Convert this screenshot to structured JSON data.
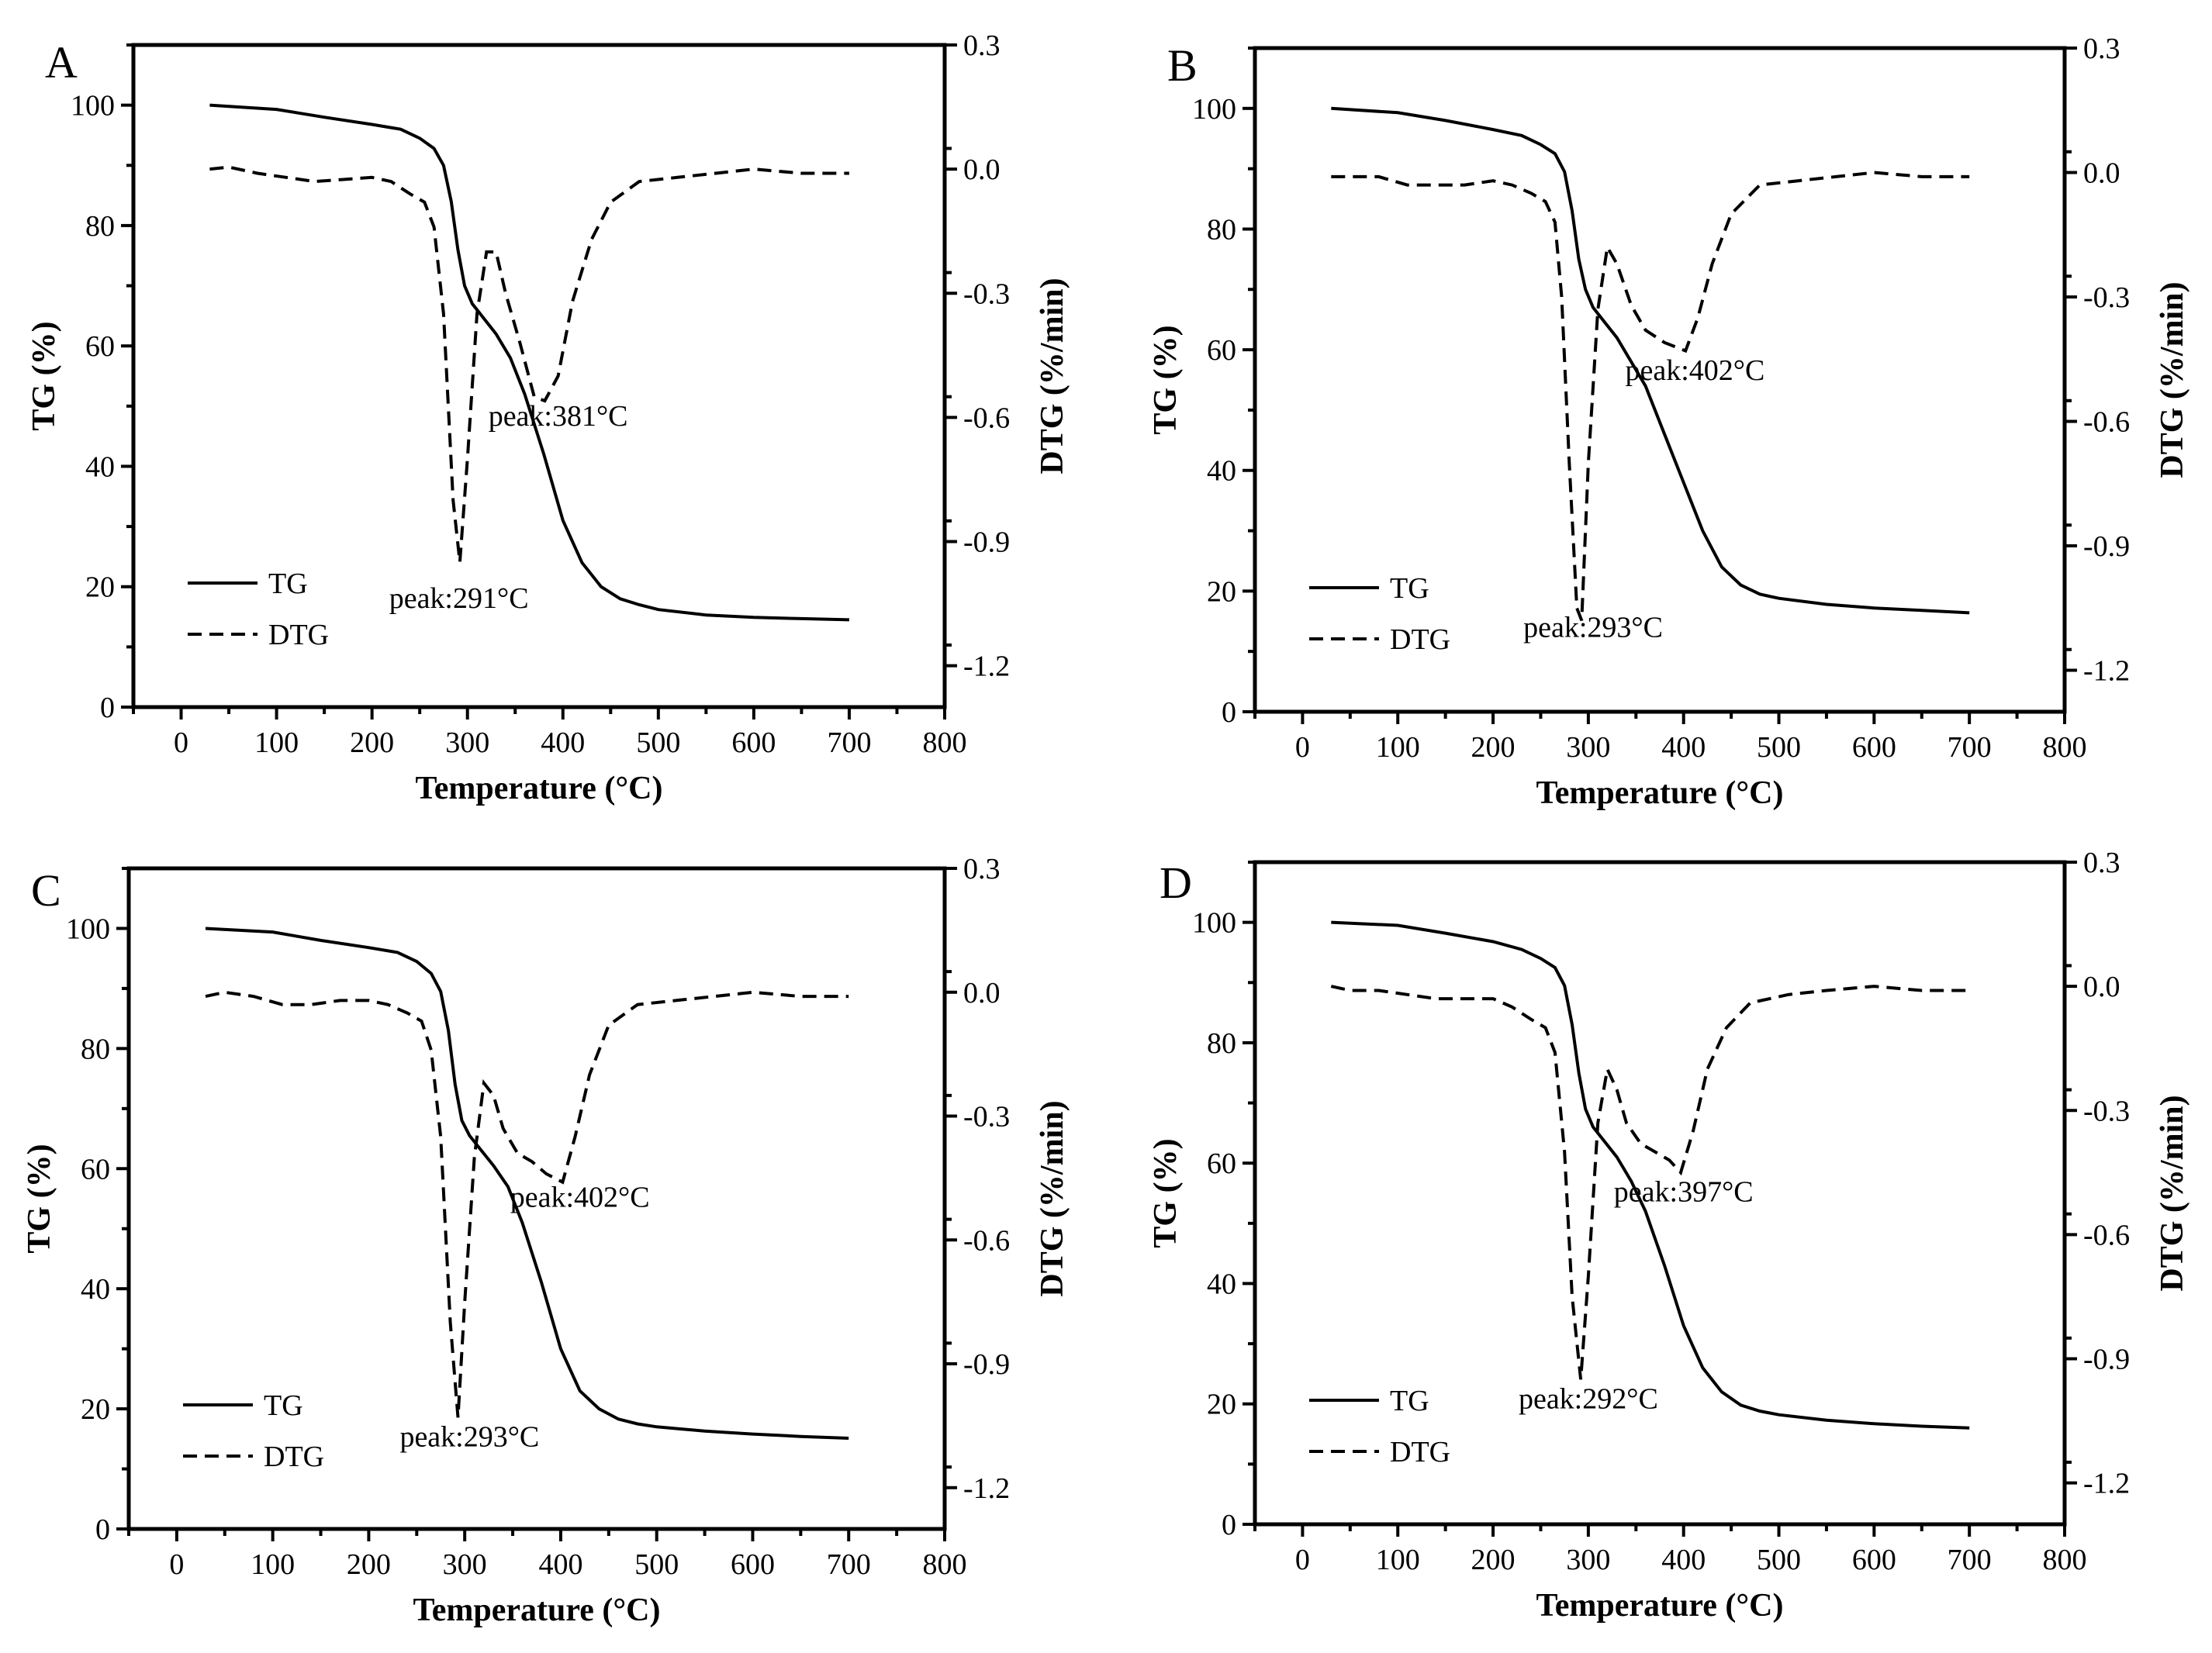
{
  "chart_data": [
    {
      "type": "line",
      "panel": "A",
      "xlabel": "Temperature (°C)",
      "ylabel": "TG (%)",
      "y2label": "DTG (%/min)",
      "xlim": [
        -50,
        800
      ],
      "ylim": [
        0,
        110
      ],
      "y2lim": [
        -1.3,
        0.3
      ],
      "xticks": [
        "0",
        "100",
        "200",
        "300",
        "400",
        "500",
        "600",
        "700",
        "800"
      ],
      "yticks": [
        "0",
        "20",
        "40",
        "60",
        "80",
        "100"
      ],
      "y2ticks": [
        "0.3",
        "0.0",
        "-0.3",
        "-0.6",
        "-0.9",
        "-1.2"
      ],
      "legend": [
        "TG",
        "DTG"
      ],
      "legend_position": "lower-left",
      "series": [
        {
          "name": "TG",
          "x": [
            30,
            100,
            150,
            200,
            230,
            250,
            265,
            275,
            283,
            290,
            297,
            305,
            315,
            330,
            345,
            360,
            380,
            400,
            420,
            440,
            460,
            480,
            500,
            550,
            600,
            650,
            700
          ],
          "values": [
            100,
            99.3,
            98,
            96.8,
            96,
            94.5,
            92.8,
            90,
            84,
            76,
            70,
            67,
            65,
            62,
            58,
            52,
            42,
            31,
            24,
            20,
            18,
            17,
            16.2,
            15.3,
            14.9,
            14.7,
            14.5
          ]
        },
        {
          "name": "DTG",
          "x": [
            30,
            50,
            80,
            110,
            140,
            170,
            200,
            220,
            240,
            255,
            265,
            275,
            285,
            292,
            300,
            310,
            320,
            330,
            340,
            355,
            370,
            381,
            395,
            410,
            430,
            450,
            480,
            520,
            560,
            600,
            650,
            700
          ],
          "values": [
            0,
            0.005,
            -0.01,
            -0.02,
            -0.03,
            -0.025,
            -0.02,
            -0.03,
            -0.06,
            -0.08,
            -0.14,
            -0.35,
            -0.8,
            -0.95,
            -0.7,
            -0.35,
            -0.2,
            -0.2,
            -0.3,
            -0.42,
            -0.55,
            -0.56,
            -0.5,
            -0.32,
            -0.17,
            -0.08,
            -0.03,
            -0.02,
            -0.01,
            0.0,
            -0.01,
            -0.01
          ]
        }
      ],
      "annotations": [
        {
          "text": "peak:291°C",
          "x": 291,
          "y2": -1.06
        },
        {
          "text": "peak:381°C",
          "x": 395,
          "y2": -0.62
        }
      ]
    },
    {
      "type": "line",
      "panel": "B",
      "xlabel": "Temperature (°C)",
      "ylabel": "TG (%)",
      "y2label": "DTG (%/min)",
      "xlim": [
        -50,
        800
      ],
      "ylim": [
        0,
        110
      ],
      "y2lim": [
        -1.3,
        0.3
      ],
      "xticks": [
        "0",
        "100",
        "200",
        "300",
        "400",
        "500",
        "600",
        "700",
        "800"
      ],
      "yticks": [
        "0",
        "20",
        "40",
        "60",
        "80",
        "100"
      ],
      "y2ticks": [
        "0.3",
        "0.0",
        "-0.3",
        "-0.6",
        "-0.9",
        "-1.2"
      ],
      "legend": [
        "TG",
        "DTG"
      ],
      "legend_position": "lower-left",
      "series": [
        {
          "name": "TG",
          "x": [
            30,
            100,
            150,
            200,
            230,
            250,
            265,
            275,
            283,
            290,
            297,
            305,
            315,
            330,
            345,
            360,
            380,
            400,
            420,
            440,
            460,
            480,
            500,
            550,
            600,
            650,
            700
          ],
          "values": [
            100,
            99.3,
            98,
            96.5,
            95.5,
            94,
            92.5,
            89.5,
            83,
            75,
            70,
            67,
            65,
            62,
            58,
            54,
            46,
            38,
            30,
            24,
            21,
            19.5,
            18.8,
            17.8,
            17.2,
            16.8,
            16.4
          ]
        },
        {
          "name": "DTG",
          "x": [
            30,
            50,
            80,
            110,
            140,
            170,
            200,
            220,
            240,
            255,
            265,
            272,
            280,
            288,
            293,
            300,
            310,
            320,
            330,
            345,
            360,
            380,
            402,
            415,
            430,
            450,
            480,
            520,
            560,
            600,
            650,
            700
          ],
          "values": [
            -0.01,
            -0.01,
            -0.01,
            -0.03,
            -0.03,
            -0.03,
            -0.02,
            -0.03,
            -0.05,
            -0.07,
            -0.12,
            -0.3,
            -0.7,
            -1.05,
            -1.08,
            -0.7,
            -0.33,
            -0.18,
            -0.22,
            -0.32,
            -0.38,
            -0.41,
            -0.43,
            -0.35,
            -0.22,
            -0.1,
            -0.03,
            -0.02,
            -0.01,
            0.0,
            -0.01,
            -0.01
          ]
        }
      ],
      "annotations": [
        {
          "text": "peak:293°C",
          "x": 305,
          "y2": -1.12
        },
        {
          "text": "peak:402°C",
          "x": 412,
          "y2": -0.5
        }
      ]
    },
    {
      "type": "line",
      "panel": "C",
      "xlabel": "Temperature (°C)",
      "ylabel": "TG (%)",
      "y2label": "DTG (%/min)",
      "xlim": [
        -50,
        800
      ],
      "ylim": [
        0,
        110
      ],
      "y2lim": [
        -1.3,
        0.3
      ],
      "xticks": [
        "0",
        "100",
        "200",
        "300",
        "400",
        "500",
        "600",
        "700",
        "800"
      ],
      "yticks": [
        "0",
        "20",
        "40",
        "60",
        "80",
        "100"
      ],
      "y2ticks": [
        "0.3",
        "0.0",
        "-0.3",
        "-0.6",
        "-0.9",
        "-1.2"
      ],
      "legend": [
        "TG",
        "DTG"
      ],
      "legend_position": "lower-left",
      "series": [
        {
          "name": "TG",
          "x": [
            30,
            100,
            150,
            200,
            230,
            250,
            265,
            275,
            283,
            290,
            297,
            305,
            315,
            330,
            345,
            360,
            380,
            400,
            420,
            440,
            460,
            480,
            500,
            550,
            600,
            650,
            700
          ],
          "values": [
            100,
            99.4,
            98,
            96.8,
            96,
            94.5,
            92.5,
            89.5,
            83,
            74,
            68,
            65.5,
            63.5,
            60.5,
            57,
            51,
            41,
            30,
            23,
            20,
            18.3,
            17.5,
            17,
            16.3,
            15.8,
            15.4,
            15.1
          ]
        },
        {
          "name": "DTG",
          "x": [
            30,
            50,
            80,
            110,
            140,
            170,
            200,
            220,
            240,
            255,
            265,
            275,
            285,
            293,
            300,
            310,
            320,
            330,
            340,
            355,
            370,
            385,
            402,
            415,
            430,
            450,
            480,
            520,
            560,
            600,
            650,
            700
          ],
          "values": [
            -0.01,
            0.0,
            -0.01,
            -0.03,
            -0.03,
            -0.02,
            -0.02,
            -0.03,
            -0.05,
            -0.07,
            -0.14,
            -0.35,
            -0.8,
            -1.03,
            -0.75,
            -0.4,
            -0.22,
            -0.25,
            -0.33,
            -0.39,
            -0.41,
            -0.44,
            -0.46,
            -0.35,
            -0.2,
            -0.08,
            -0.03,
            -0.02,
            -0.01,
            0.0,
            -0.01,
            -0.01
          ]
        }
      ],
      "annotations": [
        {
          "text": "peak:293°C",
          "x": 305,
          "y2": -1.1
        },
        {
          "text": "peak:402°C",
          "x": 420,
          "y2": -0.52
        }
      ]
    },
    {
      "type": "line",
      "panel": "D",
      "xlabel": "Temperature (°C)",
      "ylabel": "TG (%)",
      "y2label": "DTG (%/min)",
      "xlim": [
        -50,
        800
      ],
      "ylim": [
        0,
        110
      ],
      "y2lim": [
        -1.3,
        0.3
      ],
      "xticks": [
        "0",
        "100",
        "200",
        "300",
        "400",
        "500",
        "600",
        "700",
        "800"
      ],
      "yticks": [
        "0",
        "20",
        "40",
        "60",
        "80",
        "100"
      ],
      "y2ticks": [
        "0.3",
        "0.0",
        "-0.3",
        "-0.6",
        "-0.9",
        "-1.2"
      ],
      "legend": [
        "TG",
        "DTG"
      ],
      "legend_position": "lower-left",
      "series": [
        {
          "name": "TG",
          "x": [
            30,
            100,
            150,
            200,
            230,
            250,
            265,
            275,
            283,
            290,
            297,
            305,
            315,
            330,
            345,
            360,
            380,
            400,
            420,
            440,
            460,
            480,
            500,
            550,
            600,
            650,
            700
          ],
          "values": [
            100,
            99.5,
            98.2,
            96.8,
            95.5,
            94,
            92.5,
            89.5,
            83,
            75,
            69,
            66,
            64,
            61,
            57,
            52,
            43,
            33,
            26,
            22,
            19.8,
            18.8,
            18.2,
            17.3,
            16.7,
            16.3,
            16
          ]
        },
        {
          "name": "DTG",
          "x": [
            30,
            50,
            80,
            110,
            140,
            170,
            200,
            220,
            240,
            255,
            265,
            275,
            283,
            292,
            300,
            310,
            320,
            330,
            340,
            355,
            370,
            385,
            397,
            410,
            425,
            445,
            470,
            510,
            550,
            600,
            650,
            700
          ],
          "values": [
            0.0,
            -0.01,
            -0.01,
            -0.02,
            -0.03,
            -0.03,
            -0.03,
            -0.05,
            -0.08,
            -0.1,
            -0.16,
            -0.4,
            -0.75,
            -0.95,
            -0.7,
            -0.33,
            -0.2,
            -0.25,
            -0.33,
            -0.38,
            -0.4,
            -0.42,
            -0.45,
            -0.35,
            -0.2,
            -0.1,
            -0.04,
            -0.02,
            -0.01,
            0.0,
            -0.01,
            -0.01
          ]
        }
      ],
      "annotations": [
        {
          "text": "peak:292°C",
          "x": 300,
          "y2": -1.02
        },
        {
          "text": "peak:397°C",
          "x": 400,
          "y2": -0.52
        }
      ]
    }
  ]
}
